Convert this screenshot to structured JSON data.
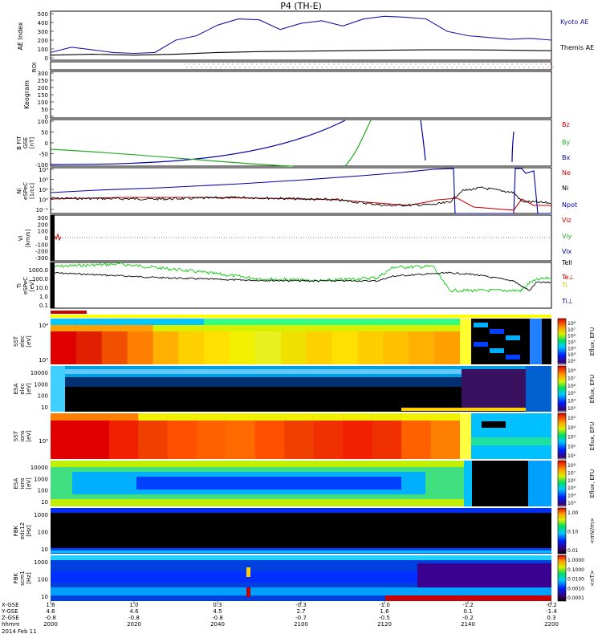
{
  "title": "P4 (TH-E)",
  "colors": {
    "kyoto": "#1a1aa8",
    "themis": "#000000",
    "bz": "#cc0000",
    "by": "#22aa22",
    "bx": "#0000aa",
    "ne": "#cc0000",
    "ni": "#000000",
    "npot": "#0000aa"
  },
  "chart_data": [
    {
      "type": "line",
      "id": "ae",
      "ylabel": "AE Index",
      "ylim": [
        0,
        500
      ],
      "yticks": [
        "500",
        "400",
        "300",
        "200",
        "100",
        "0"
      ],
      "legend": [
        "Kyoto AE",
        "Themis AE"
      ],
      "series": [
        {
          "name": "Kyoto AE",
          "x": [
            "20:00",
            "20:05",
            "20:10",
            "20:15",
            "20:20",
            "20:25",
            "20:30",
            "20:35",
            "20:40",
            "20:45",
            "20:50",
            "20:55",
            "21:00",
            "21:05",
            "21:10",
            "21:15",
            "21:20",
            "21:25",
            "21:30",
            "21:35",
            "21:40",
            "21:45",
            "21:50",
            "21:55",
            "22:00"
          ],
          "values": [
            60,
            120,
            90,
            60,
            50,
            60,
            200,
            250,
            370,
            440,
            430,
            320,
            390,
            420,
            360,
            440,
            470,
            460,
            440,
            300,
            250,
            230,
            210,
            220,
            200
          ]
        },
        {
          "name": "Themis AE",
          "x": [
            "20:00",
            "20:10",
            "20:20",
            "20:30",
            "20:40",
            "20:50",
            "21:00",
            "21:10",
            "21:20",
            "21:30",
            "21:40",
            "21:50",
            "22:00"
          ],
          "values": [
            30,
            40,
            30,
            40,
            60,
            70,
            75,
            80,
            85,
            90,
            90,
            85,
            80
          ]
        }
      ]
    },
    {
      "type": "table",
      "id": "roi",
      "ylabel": "ROI"
    },
    {
      "type": "heatmap",
      "id": "keogram",
      "ylabel": "Keogram",
      "ylim": [
        0,
        300
      ],
      "yticks": [
        "300",
        "250",
        "200",
        "150",
        "100",
        "50",
        "0"
      ]
    },
    {
      "type": "line",
      "id": "bfit",
      "ylabel": "B FIT GSE [nT]",
      "ylim": [
        -100,
        100
      ],
      "yticks": [
        "100",
        "50",
        "0",
        "-50",
        "-100"
      ],
      "legend": [
        "Bz",
        "By",
        "Bx"
      ]
    },
    {
      "type": "line",
      "id": "density",
      "ylabel": "Ni eSPeC [1/cc]",
      "legend": [
        "Ne",
        "Ni",
        "Npot"
      ],
      "yticks": [
        "10³",
        "10²",
        "10¹",
        "10⁰",
        "10⁻¹"
      ]
    },
    {
      "type": "line",
      "id": "velocity",
      "ylabel": "Vi [km/s]",
      "ylim": [
        -300,
        300
      ],
      "yticks": [
        "300",
        "200",
        "100",
        "0",
        "-100",
        "-200",
        "-300"
      ],
      "legend": [
        "Viz",
        "Viy",
        "Vix"
      ]
    },
    {
      "type": "line",
      "id": "temperature",
      "ylabel": "Ti eSPeC [eV]",
      "yticks": [
        "1000.0",
        "100.0",
        "10.0",
        "1.0",
        "0.1"
      ],
      "legend": [
        "Tell",
        "Te⊥",
        "Ti",
        "Ti⊥"
      ]
    },
    {
      "type": "heatmap",
      "id": "sst_e",
      "ylabel": "SST elec [eV]",
      "yticks": [
        "10⁴",
        "10⁵"
      ],
      "cbar_label": "Eflux, EFU",
      "cbar_ticks": [
        "10⁸",
        "10⁷",
        "10⁶",
        "10⁵",
        "10⁴",
        "10³",
        "10²"
      ]
    },
    {
      "type": "heatmap",
      "id": "esa_e",
      "ylabel": "ESA elec [eV]",
      "yticks": [
        "10000",
        "1000",
        "100",
        "10"
      ],
      "cbar_label": "Eflux, EFU",
      "cbar_ticks": [
        "10⁸",
        "10⁷",
        "10⁶",
        "10⁵",
        "10⁴",
        "10³"
      ]
    },
    {
      "type": "heatmap",
      "id": "sst_i",
      "ylabel": "SST ions [eV]",
      "yticks": [
        "10⁵"
      ],
      "cbar_label": "Eflux, EFU",
      "cbar_ticks": [
        "10⁵",
        "10⁴",
        "10³",
        "10²",
        "10¹"
      ]
    },
    {
      "type": "heatmap",
      "id": "esa_i",
      "ylabel": "ESA ions [eV]",
      "yticks": [
        "10000",
        "1000",
        "100",
        "10"
      ],
      "cbar_label": "Eflux, EFU",
      "cbar_ticks": [
        "10⁸",
        "10⁷",
        "10⁶",
        "10⁵",
        "10⁴",
        "10³"
      ]
    },
    {
      "type": "heatmap",
      "id": "fbk_e",
      "ylabel": "FBK edc12 [Hz]",
      "yticks": [
        "1000",
        "100",
        "10"
      ],
      "cbar_label": "<mV/m>",
      "cbar_ticks": [
        "1.00",
        "0.10",
        "0.01"
      ]
    },
    {
      "type": "heatmap",
      "id": "fbk_b",
      "ylabel": "FBK scm1 [Hz]",
      "yticks": [
        "1000",
        "100",
        "10"
      ],
      "cbar_label": "<nT>",
      "cbar_ticks": [
        "1.0000",
        "0.1000",
        "0.0100",
        "0.0010",
        "0.0001"
      ]
    }
  ],
  "xaxis": {
    "row_labels": [
      "X-GSE",
      "Y-GSE",
      "Z-GSE",
      "hhmm",
      "2014 Feb 11"
    ],
    "ticks": [
      {
        "x": "1.6",
        "y": "4.6",
        "z": "-0.8",
        "t": "2000"
      },
      {
        "x": "1.0",
        "y": "4.6",
        "z": "-0.8",
        "t": "2020"
      },
      {
        "x": "0.3",
        "y": "4.5",
        "z": "-0.8",
        "t": "2040"
      },
      {
        "x": "-0.3",
        "y": "2.7",
        "z": "-0.7",
        "t": "2100"
      },
      {
        "x": "-1.0",
        "y": "1.6",
        "z": "-0.5",
        "t": "2120"
      },
      {
        "x": "-1.2",
        "y": "0.1",
        "z": "-0.2",
        "t": "2140"
      },
      {
        "x": "-0.2",
        "y": "-1.4",
        "z": "0.3",
        "t": "2200"
      }
    ]
  }
}
